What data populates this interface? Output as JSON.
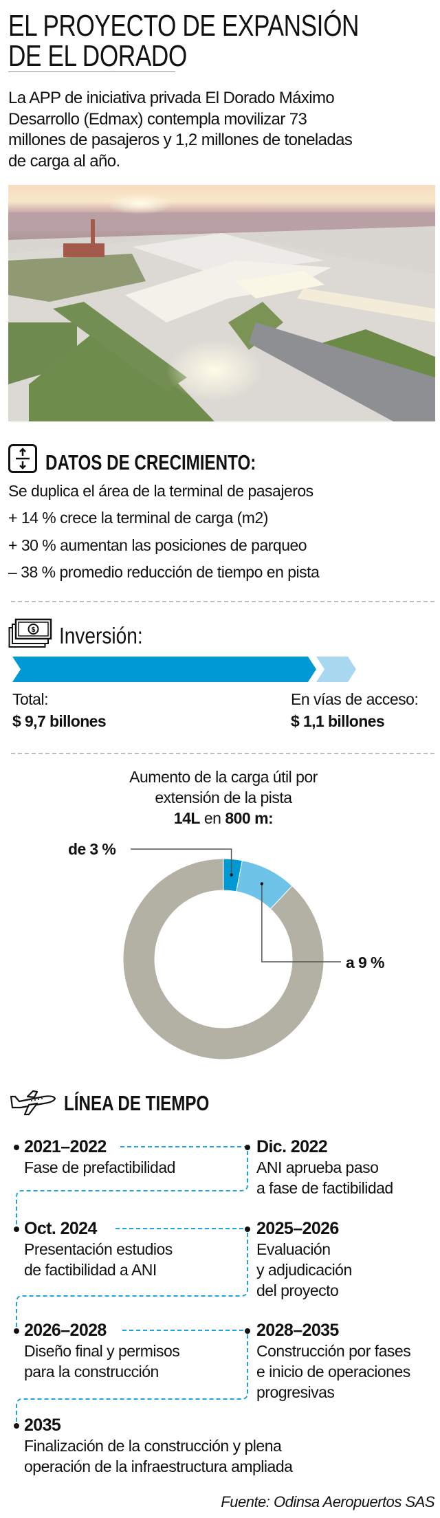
{
  "header": {
    "title_lines": [
      "EL PROYECTO DE EXPANSIÓN",
      "DE EL DORADO"
    ],
    "intro_lines": [
      "La APP de iniciativa privada El Dorado Máximo",
      "Desarrollo (Edmax) contempla  movilizar 73",
      "millones de pasajeros y 1,2 millones de toneladas",
      "de carga al año."
    ]
  },
  "growth": {
    "icon": "expand-arrows-icon",
    "heading": "DATOS DE CRECIMIENTO:",
    "items": [
      "Se duplica el área de la terminal de pasajeros",
      "+ 14 % crece la terminal de carga (m2)",
      "+ 30 % aumentan las posiciones de parqueo",
      "– 38 % promedio reducción de tiempo en pista"
    ]
  },
  "investment": {
    "icon": "money-bills-icon",
    "heading": "Inversión:",
    "total_label": "Total:",
    "total_value": "$ 9,7 billones",
    "access_label": "En vías de acceso:",
    "access_value": "$ 1,1 billones",
    "colors": {
      "total": "#0099d4",
      "access": "#a8d8f0"
    }
  },
  "chart_data": {
    "type": "pie",
    "title_lines": [
      "Aumento de la carga útil por",
      "extensión de la pista"
    ],
    "title_bold_1": "14L",
    "title_mid": " en ",
    "title_bold_2": "800 m:",
    "slices": [
      {
        "label": "de 3 %",
        "value": 3,
        "color": "#0099d4"
      },
      {
        "label": "a 9 %",
        "value": 9,
        "color": "#6ec3e8"
      }
    ],
    "remainder_color": "#b2b1a3",
    "total": 100
  },
  "timeline": {
    "icon": "airplane-icon",
    "heading": "LÍNEA DE TIEMPO",
    "items": [
      {
        "title": "2021–2022",
        "lines": [
          "Fase de prefactibilidad"
        ]
      },
      {
        "title": "Dic. 2022",
        "lines": [
          "ANI aprueba paso",
          "a fase de factibilidad"
        ]
      },
      {
        "title": "Oct. 2024",
        "lines": [
          "Presentación estudios",
          "de factibilidad a ANI"
        ]
      },
      {
        "title": "2025–2026",
        "lines": [
          "Evaluación",
          "y adjudicación",
          "del proyecto"
        ]
      },
      {
        "title": "2026–2028",
        "lines": [
          "Diseño final y permisos",
          "para la construcción"
        ]
      },
      {
        "title": "2028–2035",
        "lines": [
          "Construcción por fases",
          "e inicio de operaciones",
          "progresivas"
        ]
      },
      {
        "title": "2035",
        "lines": [
          "Finalización de la construcción y plena",
          "operación de la infraestructura ampliada"
        ]
      }
    ],
    "connector_color": "#1fa3dc"
  },
  "source": "Fuente: Odinsa Aeropuertos SAS"
}
